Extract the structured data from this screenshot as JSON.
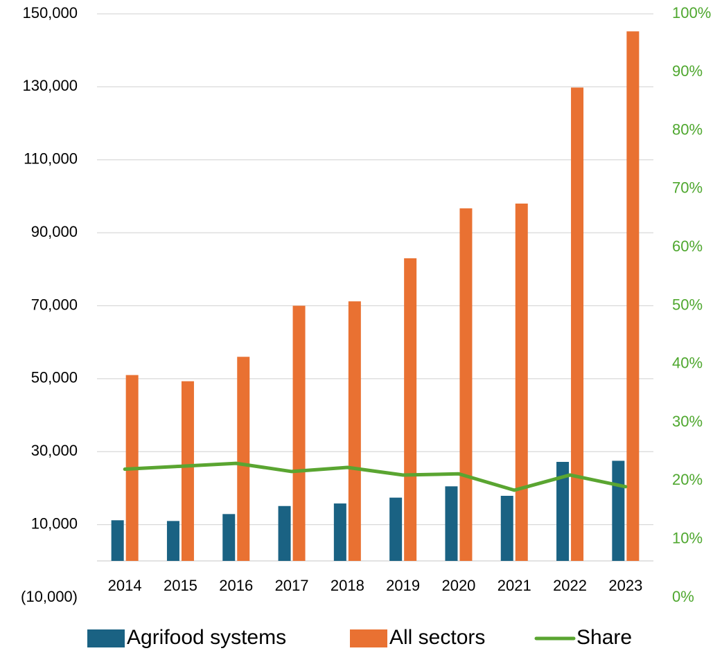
{
  "colors": {
    "agrifood": "#1a6283",
    "all_sectors": "#e97132",
    "share": "#5aa531",
    "grid": "#d9d9d9",
    "right_axis_text": "#4ea72e"
  },
  "chart_data": {
    "type": "bar",
    "title": "",
    "xlabel": "",
    "ylabel": "",
    "categories": [
      "2014",
      "2015",
      "2016",
      "2017",
      "2018",
      "2019",
      "2020",
      "2021",
      "2022",
      "2023"
    ],
    "series": [
      {
        "name": "Agrifood systems",
        "type": "bar",
        "axis": "left",
        "values": [
          11200,
          11000,
          12900,
          15100,
          15800,
          17400,
          20500,
          17900,
          27200,
          27500
        ]
      },
      {
        "name": "All sectors",
        "type": "bar",
        "axis": "left",
        "values": [
          51000,
          49300,
          56000,
          70000,
          71200,
          83000,
          96700,
          98000,
          129800,
          145200
        ]
      },
      {
        "name": "Share",
        "type": "line",
        "axis": "right",
        "values": [
          0.22,
          0.225,
          0.23,
          0.216,
          0.223,
          0.21,
          0.212,
          0.184,
          0.21,
          0.19
        ]
      }
    ],
    "ylim": [
      -10000,
      150000
    ],
    "y_ticks": [
      150000,
      130000,
      110000,
      90000,
      70000,
      50000,
      30000,
      10000,
      -10000
    ],
    "y_tick_labels": [
      "150,000",
      "130,000",
      "110,000",
      "90,000",
      "70,000",
      "50,000",
      "30,000",
      "10,000",
      "(10,000)"
    ],
    "y2lim": [
      0,
      1
    ],
    "y2_ticks": [
      1.0,
      0.9,
      0.8,
      0.7,
      0.6,
      0.5,
      0.4,
      0.3,
      0.2,
      0.1,
      0.0
    ],
    "y2_tick_labels": [
      "100%",
      "90%",
      "80%",
      "70%",
      "60%",
      "50%",
      "40%",
      "30%",
      "20%",
      "10%",
      "0%"
    ],
    "grid": true,
    "legend_position": "bottom"
  }
}
